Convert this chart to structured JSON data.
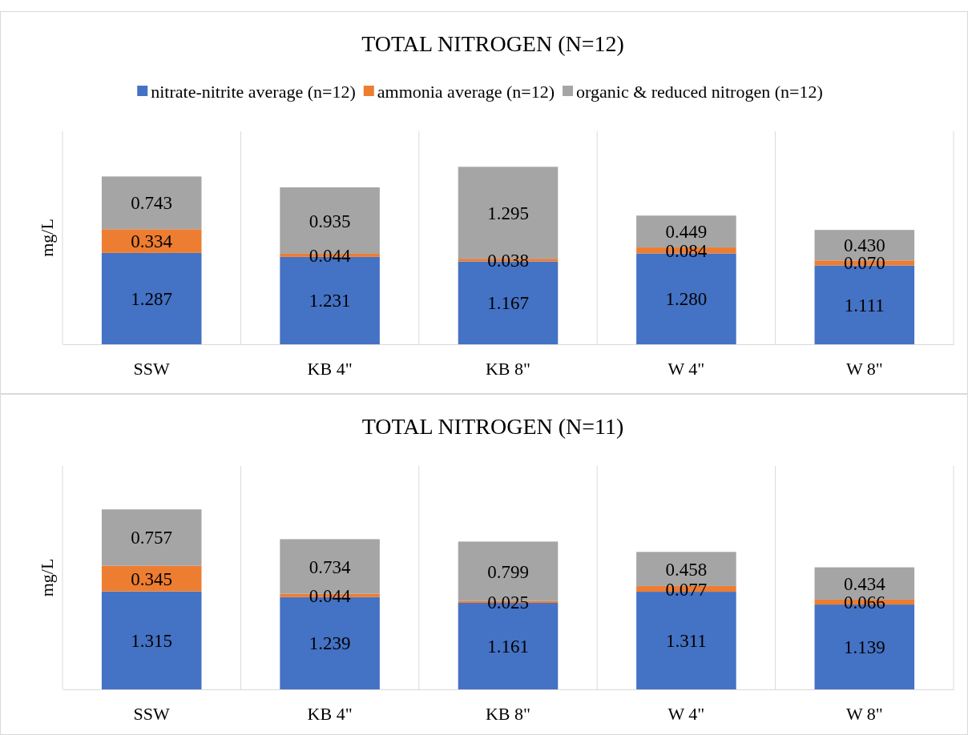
{
  "chart_data": [
    {
      "type": "bar",
      "title": "TOTAL NITROGEN (N=12)",
      "ylabel": "mg/L",
      "categories": [
        "SSW",
        "KB 4\"",
        "KB 8\"",
        "W 4\"",
        "W 8\""
      ],
      "stacked": true,
      "legend": "top",
      "grid": "x",
      "tick_labels": "x",
      "ylim": [
        0,
        3
      ],
      "series": [
        {
          "name": "nitrate-nitrite average (n=12)",
          "color": "#4472c4",
          "values": [
            1.287,
            1.231,
            1.167,
            1.28,
            1.111
          ],
          "value_labels": [
            "1.287",
            "1.231",
            "1.167",
            "1.280",
            "1.111"
          ]
        },
        {
          "name": "ammonia average (n=12)",
          "color": "#ed7d31",
          "values": [
            0.334,
            0.044,
            0.038,
            0.084,
            0.07
          ],
          "value_labels": [
            "0.334",
            "0.044",
            "0.038",
            "0.084",
            "0.070"
          ]
        },
        {
          "name": "organic &  reduced nitrogen (n=12)",
          "color": "#a5a5a5",
          "values": [
            0.743,
            0.935,
            1.295,
            0.449,
            0.43
          ],
          "value_labels": [
            "0.743",
            "0.935",
            "1.295",
            "0.449",
            "0.430"
          ]
        }
      ]
    },
    {
      "type": "bar",
      "title": "TOTAL NITROGEN (N=11)",
      "ylabel": "mg/L",
      "categories": [
        "SSW",
        "KB 4\"",
        "KB 8\"",
        "W 4\"",
        "W 8\""
      ],
      "stacked": true,
      "grid": "x",
      "tick_labels": "x",
      "ylim": [
        0,
        3
      ],
      "series": [
        {
          "color": "#4472c4",
          "values": [
            1.315,
            1.239,
            1.161,
            1.311,
            1.139
          ],
          "value_labels": [
            "1.315",
            "1.239",
            "1.161",
            "1.311",
            "1.139"
          ]
        },
        {
          "color": "#ed7d31",
          "values": [
            0.345,
            0.044,
            0.025,
            0.077,
            0.066
          ],
          "value_labels": [
            "0.345",
            "0.044",
            "0.025",
            "0.077",
            "0.066"
          ]
        },
        {
          "color": "#a5a5a5",
          "values": [
            0.757,
            0.734,
            0.799,
            0.458,
            0.434
          ],
          "value_labels": [
            "0.757",
            "0.734",
            "0.799",
            "0.458",
            "0.434"
          ]
        }
      ]
    }
  ]
}
